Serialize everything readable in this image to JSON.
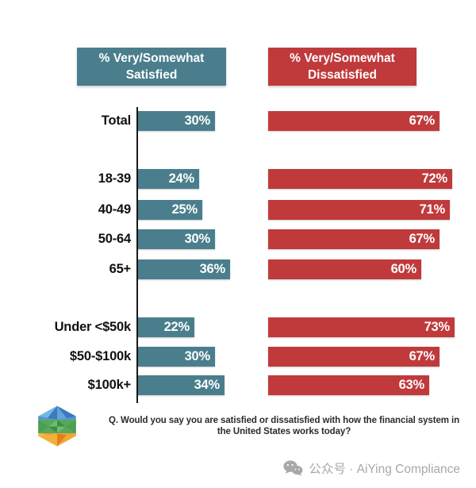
{
  "chart_data": {
    "type": "bar",
    "orientation": "horizontal",
    "value_suffix": "%",
    "xlim": [
      0,
      100
    ],
    "series": [
      {
        "name": "% Very/Somewhat Satisfied",
        "color": "#4A7E8C"
      },
      {
        "name": "% Very/Somewhat Dissatisfied",
        "color": "#C03A3C"
      }
    ],
    "satisfied_header": "% Very/Somewhat\nSatisfied",
    "dissatisfied_header": "% Very/Somewhat\nDissatisfied",
    "groups": [
      [
        "Total"
      ],
      [
        "18-39",
        "40-49",
        "50-64",
        "65+"
      ],
      [
        "Under <$50k",
        "$50-$100k",
        "$100k+"
      ]
    ],
    "rows": [
      {
        "label": "Total",
        "satisfied": 30,
        "dissatisfied": 67
      },
      {
        "label": "18-39",
        "satisfied": 24,
        "dissatisfied": 72
      },
      {
        "label": "40-49",
        "satisfied": 25,
        "dissatisfied": 71
      },
      {
        "label": "50-64",
        "satisfied": 30,
        "dissatisfied": 67
      },
      {
        "label": "65+",
        "satisfied": 36,
        "dissatisfied": 60
      },
      {
        "label": "Under <$50k",
        "satisfied": 22,
        "dissatisfied": 73
      },
      {
        "label": "$50-$100k",
        "satisfied": 30,
        "dissatisfied": 67
      },
      {
        "label": "$100k+",
        "satisfied": 34,
        "dissatisfied": 63
      }
    ]
  },
  "footer": {
    "question": "Q. Would you say you are satisfied or dissatisfied with how the financial system in the United States works today?",
    "watermark": "公众号 · AiYing Compliance"
  },
  "logo_colors": {
    "blue": "#4E93D0",
    "blue_light": "#74B6E3",
    "blue_dark": "#3C7ABE",
    "green": "#57A85C",
    "green_dark": "#3E8F46",
    "green_light": "#6FBE6E",
    "orange": "#EF9A2E",
    "orange_dark": "#E2801F",
    "yellow": "#F2C043"
  }
}
